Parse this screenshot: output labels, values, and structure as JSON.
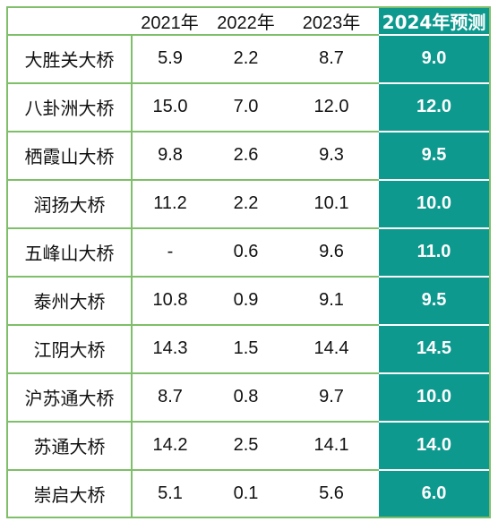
{
  "table": {
    "headers": [
      "",
      "2021年",
      "2022年",
      "2023年",
      "2024年预测"
    ],
    "rows": [
      {
        "name": "大胜关大桥",
        "y2021": "5.9",
        "y2022": "2.2",
        "y2023": "8.7",
        "y2024": "9.0"
      },
      {
        "name": "八卦洲大桥",
        "y2021": "15.0",
        "y2022": "7.0",
        "y2023": "12.0",
        "y2024": "12.0"
      },
      {
        "name": "栖霞山大桥",
        "y2021": "9.8",
        "y2022": "2.6",
        "y2023": "9.3",
        "y2024": "9.5"
      },
      {
        "name": "润扬大桥",
        "y2021": "11.2",
        "y2022": "2.2",
        "y2023": "10.1",
        "y2024": "10.0"
      },
      {
        "name": "五峰山大桥",
        "y2021": "-",
        "y2022": "0.6",
        "y2023": "9.6",
        "y2024": "11.0"
      },
      {
        "name": "泰州大桥",
        "y2021": "10.8",
        "y2022": "0.9",
        "y2023": "9.1",
        "y2024": "9.5"
      },
      {
        "name": "江阴大桥",
        "y2021": "14.3",
        "y2022": "1.5",
        "y2023": "14.4",
        "y2024": "14.5"
      },
      {
        "name": "沪苏通大桥",
        "y2021": "8.7",
        "y2022": "0.8",
        "y2023": "9.7",
        "y2024": "10.0"
      },
      {
        "name": "苏通大桥",
        "y2021": "14.2",
        "y2022": "2.5",
        "y2023": "14.1",
        "y2024": "14.0"
      },
      {
        "name": "崇启大桥",
        "y2021": "5.1",
        "y2022": "0.1",
        "y2023": "5.6",
        "y2024": "6.0"
      }
    ]
  },
  "colors": {
    "border": "#7fbf6a",
    "forecast_bg": "#0e998f",
    "forecast_text": "#ffffff"
  }
}
